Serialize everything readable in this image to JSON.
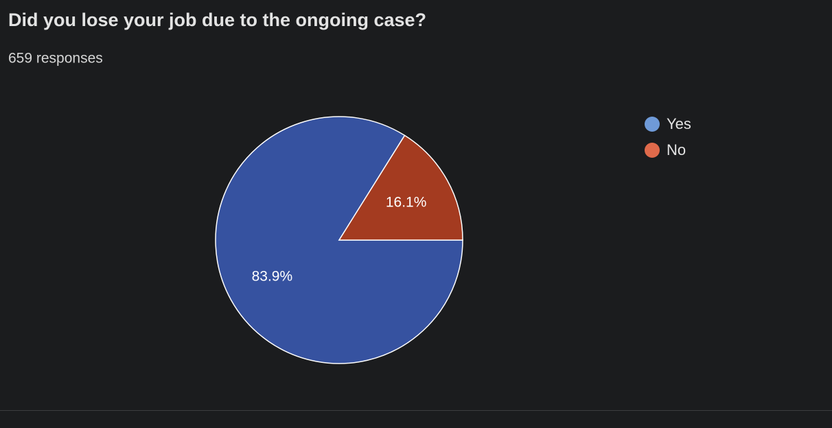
{
  "chart_data": {
    "type": "pie",
    "title": "Did you lose your job due to the ongoing case?",
    "subtitle": "659 responses",
    "categories": [
      "Yes",
      "No"
    ],
    "values": [
      83.9,
      16.1
    ],
    "value_labels": [
      "83.9%",
      "16.1%"
    ],
    "colors": [
      "#3652a0",
      "#a43b20"
    ],
    "legend_colors": [
      "#6f9ad8",
      "#e06a4b"
    ],
    "legend": "right"
  }
}
